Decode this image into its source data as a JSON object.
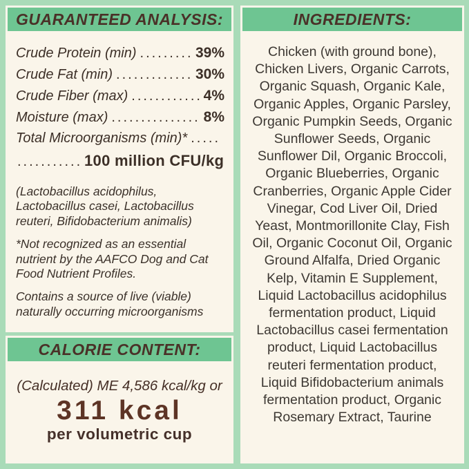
{
  "colors": {
    "background_mint": "#a9dbb8",
    "banner_green": "#6ec592",
    "panel_cream": "#faf5ea",
    "heading_brown": "#4a3128",
    "body_text": "#3c2f27",
    "kcal_brown": "#5d3425"
  },
  "left": {
    "analysis": {
      "title": "GUARANTEED ANALYSIS:",
      "rows": [
        {
          "label": "Crude Protein (min)",
          "value": "39%"
        },
        {
          "label": "Crude Fat (min)",
          "value": "30%"
        },
        {
          "label": "Crude Fiber (max)",
          "value": "4%"
        },
        {
          "label": "Moisture (max)",
          "value": "8%"
        }
      ],
      "micro_label": "Total Microorganisms (min)*",
      "micro_value": "100 million CFU/kg",
      "notes": [
        "(Lactobacillus acidophilus, Lactobacillus casei, Lactobacillus reuteri, Bifidobacterium animalis)",
        "*Not recognized as an essential nutrient by the AAFCO Dog and Cat Food Nutrient Profiles.",
        "Contains a source of live (viable) naturally occurring microorganisms"
      ]
    },
    "calorie": {
      "title": "CALORIE CONTENT:",
      "line1": "(Calculated) ME 4,586 kcal/kg or",
      "kcal": "311 kcal",
      "per": "per volumetric cup"
    }
  },
  "right": {
    "title": "INGREDIENTS:",
    "lines": [
      "Chicken (with ground bone),",
      "Chicken Livers, Organic Carrots,",
      "Organic Squash, Organic Kale,",
      "Organic Apples, Organic Parsley,",
      "Organic Pumpkin Seeds, Organic",
      "Sunflower Seeds, Organic",
      "Sunflower Dil, Organic Broccoli,",
      "Organic Blueberries, Organic",
      "Cranberries, Organic Apple Cider",
      "Vinegar, Cod Liver Oil, Dried",
      "Yeast, Montmorillonite Clay, Fish",
      "Oil, Organic Coconut Oil, Organic",
      "Ground Alfalfa, Dried Organic",
      "Kelp, Vitamin E Supplement,",
      "Liquid Lactobacillus acidophilus",
      "fermentation product, Liquid",
      "Lactobacillus casei fermentation",
      "product, Liquid Lactobacillus",
      "reuteri fermentation product,",
      "Liquid Bifidobacterium animals",
      "fermentation product, Organic",
      "Rosemary Extract, Taurine"
    ]
  }
}
